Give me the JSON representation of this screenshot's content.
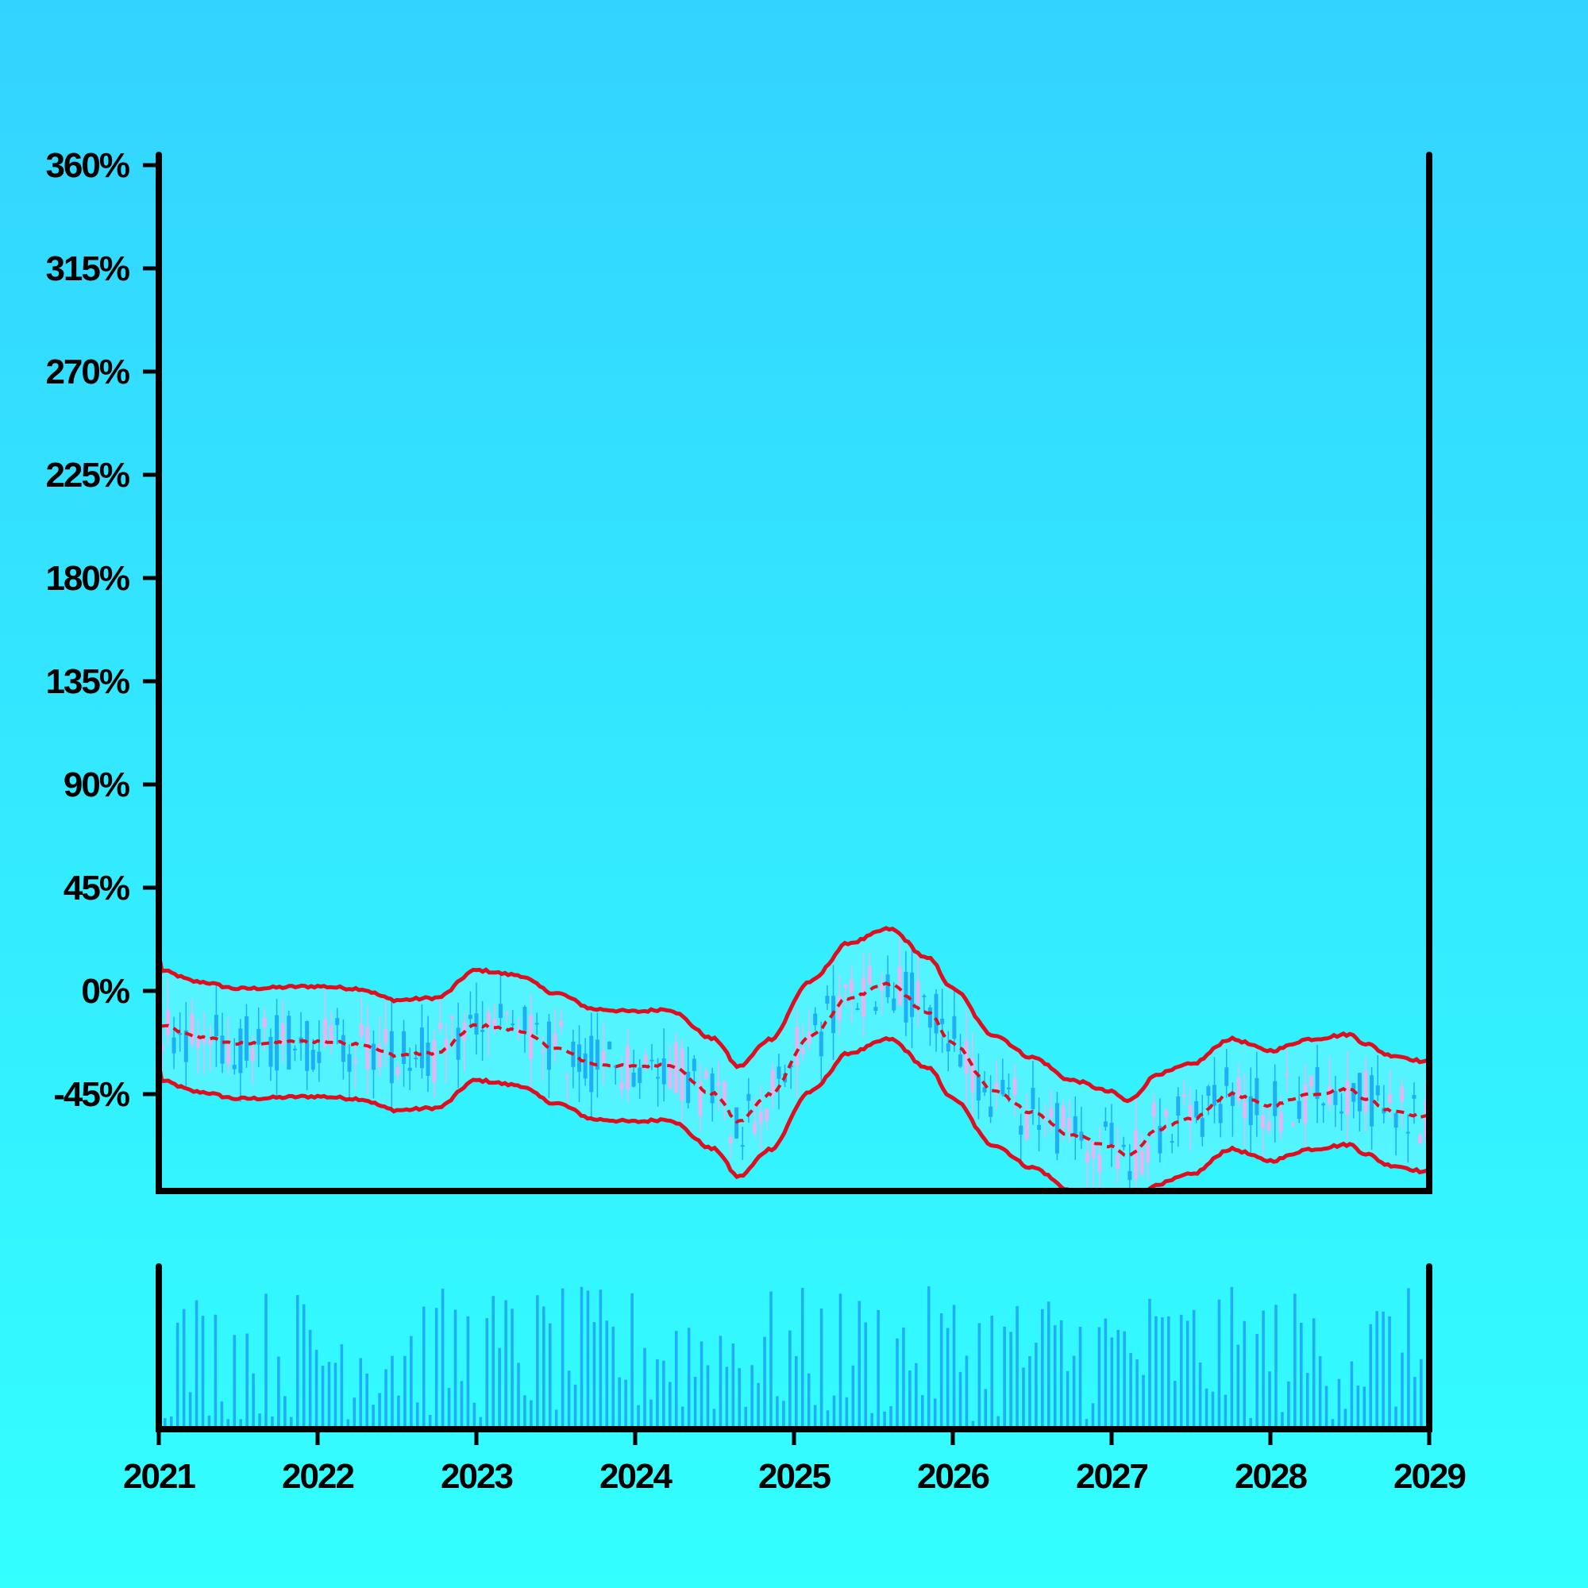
{
  "chart_data": {
    "type": "candlestick",
    "title": "",
    "xlabel": "",
    "ylabel": "",
    "x_ticks": [
      "2021",
      "2022",
      "2023",
      "2024",
      "2025",
      "2026",
      "2027",
      "2028",
      "2029"
    ],
    "y_ticks": [
      "360%",
      "315%",
      "270%",
      "225%",
      "180%",
      "135%",
      "90%",
      "45%",
      "0%",
      "-45%"
    ],
    "xlim": [
      2021,
      2029
    ],
    "ylim": [
      -86,
      362
    ],
    "grid": false,
    "legend": "none",
    "colors": {
      "up": "#1eaef5",
      "down": "#e6b4f0",
      "band_line": "#dd0f1e",
      "band_fill": "#5af5ff",
      "volume": "#1eaef5",
      "axis": "#000000"
    },
    "band": {
      "name": "",
      "points": [
        [
          2021.0,
          -15
        ],
        [
          2021.25,
          -20
        ],
        [
          2021.5,
          -23
        ],
        [
          2022.0,
          -22
        ],
        [
          2022.25,
          -23
        ],
        [
          2022.5,
          -28
        ],
        [
          2022.75,
          -27
        ],
        [
          2023.0,
          -15
        ],
        [
          2023.25,
          -17
        ],
        [
          2023.5,
          -25
        ],
        [
          2023.75,
          -32
        ],
        [
          2024.0,
          -33
        ],
        [
          2024.2,
          -32
        ],
        [
          2024.5,
          -45
        ],
        [
          2024.65,
          -57
        ],
        [
          2024.85,
          -45
        ],
        [
          2025.1,
          -20
        ],
        [
          2025.35,
          -3
        ],
        [
          2025.6,
          3
        ],
        [
          2025.85,
          -10
        ],
        [
          2026.0,
          -23
        ],
        [
          2026.25,
          -43
        ],
        [
          2026.5,
          -53
        ],
        [
          2026.75,
          -63
        ],
        [
          2027.0,
          -68
        ],
        [
          2027.1,
          -72
        ],
        [
          2027.3,
          -60
        ],
        [
          2027.5,
          -56
        ],
        [
          2027.75,
          -45
        ],
        [
          2028.0,
          -50
        ],
        [
          2028.25,
          -45
        ],
        [
          2028.5,
          -43
        ],
        [
          2028.6,
          -47
        ],
        [
          2028.75,
          -52
        ],
        [
          2029.0,
          -55
        ]
      ],
      "upper_offset": 24,
      "lower_offset": 24
    },
    "candles_note_unused": "",
    "volume": {
      "count": 200
    }
  }
}
